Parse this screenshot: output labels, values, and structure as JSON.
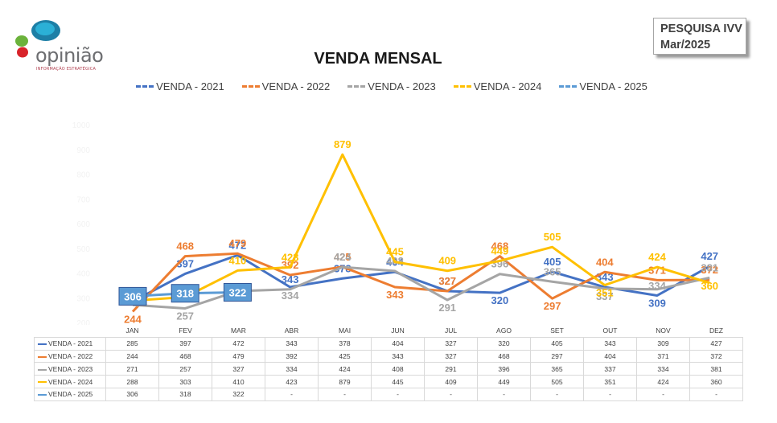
{
  "header": {
    "logo_text": "opinião",
    "logo_sub": "INFORMAÇÃO ESTRATÉGICA",
    "badge_line1": "PESQUISA IVV",
    "badge_line2": "Mar/2025"
  },
  "chart_data": {
    "type": "line",
    "title": "VENDA MENSAL",
    "categories": [
      "JAN",
      "FEV",
      "MAR",
      "ABR",
      "MAI",
      "JUN",
      "JUL",
      "AGO",
      "SET",
      "OUT",
      "NOV",
      "DEZ"
    ],
    "ylim": [
      200,
      1000
    ],
    "yticks": [
      "1000",
      "900",
      "800",
      "700",
      "600",
      "500",
      "400",
      "300",
      "200"
    ],
    "grid": false,
    "legend_position": "top",
    "series": [
      {
        "name": "VENDA - 2021",
        "color": "#4472c4",
        "values": [
          285,
          397,
          472,
          343,
          378,
          404,
          327,
          320,
          405,
          343,
          309,
          427
        ],
        "display": [
          "285",
          "397",
          "472",
          "343",
          "378",
          "404",
          "327",
          "320",
          "405",
          "343",
          "309",
          "427"
        ]
      },
      {
        "name": "VENDA - 2022",
        "color": "#ed7d31",
        "values": [
          244,
          468,
          479,
          392,
          425,
          343,
          327,
          468,
          297,
          404,
          371,
          372
        ],
        "display": [
          "244",
          "468",
          "479",
          "392",
          "425",
          "343",
          "327",
          "468",
          "297",
          "404",
          "371",
          "372"
        ]
      },
      {
        "name": "VENDA - 2023",
        "color": "#a5a5a5",
        "values": [
          271,
          257,
          327,
          334,
          424,
          408,
          291,
          396,
          365,
          337,
          334,
          381
        ],
        "display": [
          "271",
          "257",
          "327",
          "334",
          "424",
          "408",
          "291",
          "396",
          "365",
          "337",
          "334",
          "381"
        ]
      },
      {
        "name": "VENDA - 2024",
        "color": "#ffc000",
        "values": [
          288,
          303,
          410,
          423,
          879,
          445,
          409,
          449,
          505,
          351,
          424,
          360
        ],
        "display": [
          "288",
          "303",
          "410",
          "423",
          "879",
          "445",
          "409",
          "449",
          "505",
          "351",
          "424",
          "360"
        ]
      },
      {
        "name": "VENDA - 2025",
        "color": "#5b9bd5",
        "values": [
          306,
          318,
          322,
          null,
          null,
          null,
          null,
          null,
          null,
          null,
          null,
          null
        ],
        "display": [
          "306",
          "318",
          "322",
          "-",
          "-",
          "-",
          "-",
          "-",
          "-",
          "-",
          "-",
          "-"
        ]
      }
    ]
  }
}
